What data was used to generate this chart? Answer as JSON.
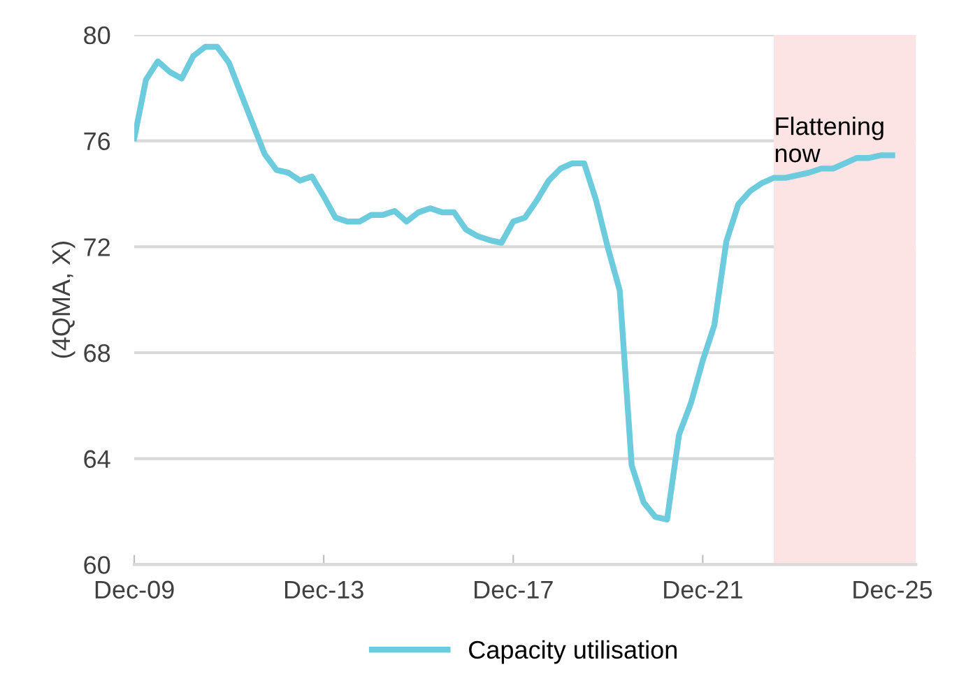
{
  "chart_data": {
    "type": "line",
    "ylabel": "(4QMA, X)",
    "x": [
      "2009-12",
      "2010-03",
      "2010-06",
      "2010-09",
      "2010-12",
      "2011-03",
      "2011-06",
      "2011-09",
      "2011-12",
      "2012-03",
      "2012-06",
      "2012-09",
      "2012-12",
      "2013-03",
      "2013-06",
      "2013-09",
      "2013-12",
      "2014-03",
      "2014-06",
      "2014-09",
      "2014-12",
      "2015-03",
      "2015-06",
      "2015-09",
      "2015-12",
      "2016-03",
      "2016-06",
      "2016-09",
      "2016-12",
      "2017-03",
      "2017-06",
      "2017-09",
      "2017-12",
      "2018-03",
      "2018-06",
      "2018-09",
      "2018-12",
      "2019-03",
      "2019-06",
      "2019-09",
      "2019-12",
      "2020-03",
      "2020-06",
      "2020-09",
      "2020-12",
      "2021-03",
      "2021-06",
      "2021-09",
      "2021-12",
      "2022-03",
      "2022-06",
      "2022-09",
      "2022-12",
      "2023-03",
      "2023-06",
      "2023-09",
      "2023-12",
      "2024-03",
      "2024-06",
      "2024-09",
      "2024-12",
      "2025-03",
      "2025-06",
      "2025-09",
      "2025-12"
    ],
    "series": [
      {
        "name": "Capacity utilisation",
        "color": "#6ccbdc",
        "values": [
          76.1,
          78.3,
          79.0,
          78.6,
          78.35,
          79.2,
          79.55,
          79.55,
          78.95,
          77.8,
          76.65,
          75.5,
          74.9,
          74.8,
          74.5,
          74.65,
          73.9,
          73.1,
          72.95,
          72.95,
          73.2,
          73.2,
          73.35,
          72.95,
          73.3,
          73.45,
          73.3,
          73.3,
          72.65,
          72.4,
          72.25,
          72.15,
          72.95,
          73.1,
          73.75,
          74.5,
          74.95,
          75.15,
          75.15,
          73.75,
          71.95,
          70.35,
          63.75,
          62.35,
          61.8,
          61.7,
          64.9,
          66.1,
          67.7,
          69.05,
          72.2,
          73.6,
          74.1,
          74.4,
          74.6,
          74.6,
          74.7,
          74.8,
          74.95,
          74.95,
          75.15,
          75.35,
          75.35,
          75.45,
          75.45
        ]
      }
    ],
    "xlim": [
      "2009-12",
      "2026-06"
    ],
    "xticks": [
      {
        "value": "2009-12",
        "label": "Dec-09"
      },
      {
        "value": "2013-12",
        "label": "Dec-13"
      },
      {
        "value": "2017-12",
        "label": "Dec-17"
      },
      {
        "value": "2021-12",
        "label": "Dec-21"
      },
      {
        "value": "2025-12",
        "label": "Dec-25"
      }
    ],
    "ylim": [
      60,
      80
    ],
    "yticks": [
      60,
      64,
      68,
      72,
      76,
      80
    ],
    "bands": [
      {
        "axis": "x",
        "from": "2023-06",
        "to": "2026-06",
        "label": "Flattening\nnow",
        "color": "#fde4e4"
      }
    ],
    "grid": "y",
    "legend": "bottom",
    "marker": "none",
    "line_style": "solid"
  }
}
